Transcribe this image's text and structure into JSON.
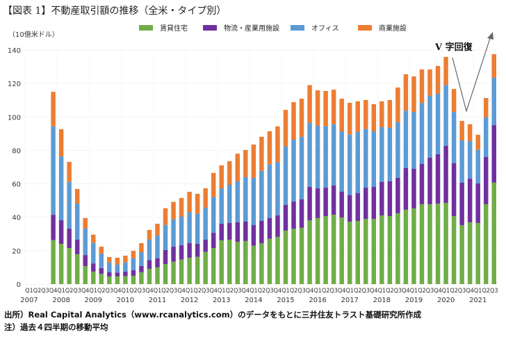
{
  "title": "【図表 1】不動産取引額の推移（全米・タイプ別）",
  "unit_label": "（10億米ドル）",
  "source_note": "出所）Real Capital Analytics（www.rcanalytics.com）のデータをもとに三井住友トラスト基礎研究所作成",
  "footnote": "注）過去４四半期の移動平均",
  "annotation": "V 字回復",
  "chart_data": {
    "type": "bar",
    "stacked": true,
    "ylim": [
      0,
      140
    ],
    "yticks": [
      0,
      20,
      40,
      60,
      80,
      100,
      120,
      140
    ],
    "grid": true,
    "legend_position": "top",
    "start_year": 2007,
    "years": [
      "2007",
      "2008",
      "2009",
      "2010",
      "2011",
      "2012",
      "2013",
      "2014",
      "2015",
      "2016",
      "2017",
      "2018",
      "2019",
      "2020",
      "2021"
    ],
    "quarter_labels": [
      "Q1",
      "Q2",
      "Q3",
      "Q4"
    ],
    "categories": [
      "2007Q1",
      "2007Q2",
      "2007Q3",
      "2007Q4",
      "2008Q1",
      "2008Q2",
      "2008Q3",
      "2008Q4",
      "2009Q1",
      "2009Q2",
      "2009Q3",
      "2009Q4",
      "2010Q1",
      "2010Q2",
      "2010Q3",
      "2010Q4",
      "2011Q1",
      "2011Q2",
      "2011Q3",
      "2011Q4",
      "2012Q1",
      "2012Q2",
      "2012Q3",
      "2012Q4",
      "2013Q1",
      "2013Q2",
      "2013Q3",
      "2013Q4",
      "2014Q1",
      "2014Q2",
      "2014Q3",
      "2014Q4",
      "2015Q1",
      "2015Q2",
      "2015Q3",
      "2015Q4",
      "2016Q1",
      "2016Q2",
      "2016Q3",
      "2016Q4",
      "2017Q1",
      "2017Q2",
      "2017Q3",
      "2017Q4",
      "2018Q1",
      "2018Q2",
      "2018Q3",
      "2018Q4",
      "2019Q1",
      "2019Q2",
      "2019Q3",
      "2019Q4",
      "2020Q1",
      "2020Q2",
      "2020Q3",
      "2020Q4",
      "2021Q1",
      "2021Q2",
      "2021Q3"
    ],
    "series": [
      {
        "name": "賃貸住宅",
        "color": "#70ad47",
        "values": [
          null,
          null,
          null,
          26.3,
          24.1,
          21.6,
          17.9,
          10.8,
          7.5,
          6.2,
          4.6,
          4.6,
          4.8,
          5.0,
          7.1,
          9.1,
          10.0,
          12.0,
          13.4,
          14.7,
          15.8,
          16.3,
          19.3,
          21.6,
          26.2,
          26.6,
          25.3,
          25.8,
          23.0,
          24.5,
          27.1,
          28.3,
          32.0,
          33.1,
          33.7,
          38.2,
          39.5,
          40.7,
          41.5,
          39.9,
          37.3,
          37.8,
          39.0,
          39.0,
          41.1,
          40.7,
          42.4,
          44.5,
          45.3,
          47.8,
          47.8,
          48.2,
          48.6,
          40.7,
          35.2,
          37.0,
          36.6,
          47.8,
          60.7
        ]
      },
      {
        "name": "物流・産業用施設",
        "color": "#7030a0",
        "values": [
          null,
          null,
          null,
          15.2,
          14.1,
          11.6,
          8.7,
          6.6,
          4.9,
          3.4,
          2.5,
          2.3,
          2.7,
          3.3,
          3.8,
          5.2,
          5.5,
          8.4,
          9.0,
          8.6,
          8.7,
          7.8,
          7.3,
          9.1,
          9.9,
          10.0,
          11.7,
          11.6,
          12.3,
          13.3,
          12.4,
          12.8,
          15.4,
          16.3,
          17.0,
          20.0,
          17.8,
          17.0,
          17.5,
          15.5,
          15.9,
          16.6,
          18.7,
          19.2,
          20.0,
          20.8,
          21.2,
          24.9,
          23.7,
          24.1,
          27.9,
          29.5,
          34.1,
          31.6,
          25.5,
          26.1,
          23.6,
          28.2,
          34.4
        ]
      },
      {
        "name": "オフィス",
        "color": "#5b9bd5",
        "values": [
          null,
          null,
          null,
          52.9,
          38.2,
          28.0,
          21.6,
          15.8,
          12.2,
          8.7,
          5.9,
          4.7,
          5.5,
          7.2,
          8.2,
          12.3,
          13.6,
          15.0,
          16.4,
          17.0,
          18.5,
          18.0,
          19.1,
          21.4,
          21.2,
          22.8,
          24.5,
          26.6,
          28.3,
          30.0,
          32.1,
          31.8,
          34.9,
          37.0,
          37.4,
          38.2,
          37.4,
          36.7,
          36.6,
          36.0,
          36.2,
          36.7,
          35.1,
          33.2,
          32.8,
          32.0,
          33.3,
          34.3,
          34.0,
          36.4,
          37.0,
          36.1,
          36.4,
          30.7,
          25.3,
          22.5,
          20.1,
          23.7,
          28.3
        ]
      },
      {
        "name": "商業施設",
        "color": "#ed7d31",
        "values": [
          null,
          null,
          null,
          20.6,
          16.2,
          11.9,
          8.7,
          6.3,
          5.0,
          4.1,
          3.2,
          4.2,
          4.0,
          4.4,
          5.4,
          5.8,
          7.0,
          10.0,
          10.4,
          11.2,
          12.2,
          11.9,
          11.6,
          14.4,
          13.7,
          14.1,
          16.5,
          16.2,
          19.9,
          20.3,
          19.8,
          21.4,
          21.9,
          22.4,
          22.8,
          22.6,
          21.2,
          21.1,
          20.7,
          19.5,
          19.0,
          18.2,
          17.3,
          16.2,
          15.4,
          16.6,
          20.7,
          21.8,
          21.2,
          20.1,
          15.7,
          16.7,
          16.8,
          13.7,
          11.6,
          10.0,
          9.0,
          11.6,
          14.1
        ]
      }
    ]
  }
}
